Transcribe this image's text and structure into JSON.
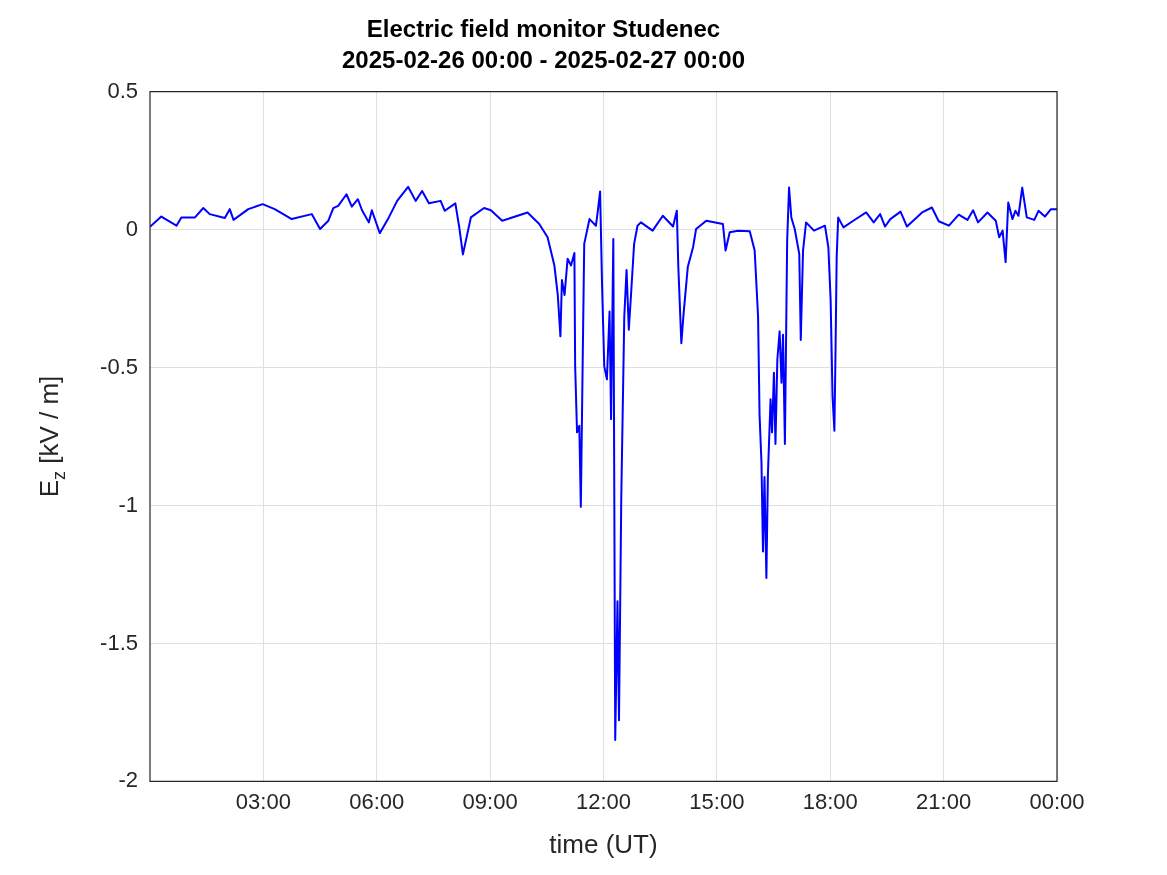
{
  "chart_data": {
    "type": "line",
    "title": "Electric field monitor Studenec",
    "subtitle": "2025-02-26 00:00 - 2025-02-27 00:00",
    "xlabel": "time (UT)",
    "ylabel": "E$_{z}$ [kV / m]",
    "xlim": [
      0,
      24
    ],
    "xticks": [
      {
        "value": 3,
        "label": "03:00"
      },
      {
        "value": 6,
        "label": "06:00"
      },
      {
        "value": 9,
        "label": "09:00"
      },
      {
        "value": 12,
        "label": "12:00"
      },
      {
        "value": 15,
        "label": "15:00"
      },
      {
        "value": 18,
        "label": "18:00"
      },
      {
        "value": 21,
        "label": "21:00"
      },
      {
        "value": 24,
        "label": "00:00"
      }
    ],
    "ylim": [
      -2,
      0.5
    ],
    "yticks": [
      -2,
      -1.5,
      -1,
      -0.5,
      0,
      0.5
    ],
    "grid": true,
    "marker": "none",
    "line_style": "solid",
    "series": [
      {
        "color": "#0000ff",
        "x": [
          0,
          0.3,
          0.7,
          0.83,
          1.19,
          1.41,
          1.58,
          1.98,
          2.11,
          2.21,
          2.6,
          2.98,
          3.3,
          3.75,
          4.28,
          4.5,
          4.72,
          4.85,
          4.98,
          5.2,
          5.34,
          5.5,
          5.61,
          5.79,
          5.87,
          6.08,
          6.32,
          6.54,
          6.83,
          7.03,
          7.2,
          7.38,
          7.69,
          7.8,
          8.08,
          8.19,
          8.28,
          8.49,
          8.84,
          9.02,
          9.32,
          9.99,
          10.3,
          10.52,
          10.7,
          10.79,
          10.86,
          10.9,
          10.97,
          11.05,
          11.14,
          11.23,
          11.25,
          11.3,
          11.36,
          11.4,
          11.45,
          11.49,
          11.63,
          11.8,
          11.85,
          11.91,
          11.96,
          12.02,
          12.09,
          12.16,
          12.2,
          12.26,
          12.31,
          12.37,
          12.41,
          12.47,
          12.55,
          12.61,
          12.67,
          12.73,
          12.81,
          12.9,
          12.99,
          13.3,
          13.57,
          13.84,
          13.94,
          13.98,
          14.06,
          14.12,
          14.23,
          14.37,
          14.45,
          14.72,
          15.16,
          15.23,
          15.34,
          15.56,
          15.87,
          16,
          16.09,
          16.13,
          16.18,
          16.22,
          16.26,
          16.31,
          16.35,
          16.42,
          16.46,
          16.51,
          16.55,
          16.6,
          16.66,
          16.71,
          16.75,
          16.8,
          16.86,
          16.91,
          16.97,
          17.06,
          17.18,
          17.22,
          17.28,
          17.36,
          17.57,
          17.86,
          17.95,
          18.01,
          18.06,
          18.11,
          18.14,
          18.17,
          18.21,
          18.35,
          18.61,
          18.95,
          19.15,
          19.32,
          19.45,
          19.59,
          19.86,
          20.03,
          20.43,
          20.69,
          20.87,
          21.14,
          21.4,
          21.63,
          21.78,
          21.91,
          22.16,
          22.38,
          22.47,
          22.56,
          22.64,
          22.71,
          22.82,
          22.9,
          22.98,
          23.08,
          23.2,
          23.4,
          23.51,
          23.68,
          23.84,
          24
        ],
        "values": [
          0.01,
          0.047,
          0.014,
          0.044,
          0.044,
          0.078,
          0.056,
          0.042,
          0.074,
          0.035,
          0.074,
          0.092,
          0.074,
          0.038,
          0.056,
          0.002,
          0.032,
          0.078,
          0.086,
          0.128,
          0.083,
          0.11,
          0.07,
          0.026,
          0.07,
          -0.013,
          0.044,
          0.104,
          0.155,
          0.104,
          0.14,
          0.095,
          0.104,
          0.068,
          0.095,
          0.002,
          -0.09,
          0.044,
          0.078,
          0.07,
          0.032,
          0.062,
          0.02,
          -0.028,
          -0.13,
          -0.237,
          -0.387,
          -0.183,
          -0.237,
          -0.106,
          -0.13,
          -0.085,
          -0.495,
          -0.735,
          -0.711,
          -1.005,
          -0.471,
          -0.052,
          0.038,
          0.014,
          0.068,
          0.138,
          -0.19,
          -0.495,
          -0.543,
          -0.297,
          -0.687,
          -0.034,
          -1.85,
          -1.347,
          -1.778,
          -0.975,
          -0.315,
          -0.147,
          -0.363,
          -0.232,
          -0.052,
          0.014,
          0.026,
          -0.004,
          0.05,
          0.011,
          0.068,
          -0.136,
          -0.412,
          -0.304,
          -0.136,
          -0.064,
          0.002,
          0.032,
          0.02,
          -0.076,
          -0.01,
          -0.004,
          -0.006,
          -0.076,
          -0.315,
          -0.675,
          -0.843,
          -1.167,
          -0.897,
          -1.263,
          -0.891,
          -0.615,
          -0.735,
          -0.519,
          -0.777,
          -0.471,
          -0.369,
          -0.555,
          -0.381,
          -0.777,
          -0.04,
          0.152,
          0.044,
          0.002,
          -0.088,
          -0.4,
          -0.076,
          0.026,
          -0.004,
          0.014,
          -0.064,
          -0.255,
          -0.603,
          -0.729,
          -0.435,
          -0.1,
          0.044,
          0.008,
          0.032,
          0.062,
          0.026,
          0.056,
          0.011,
          0.038,
          0.065,
          0.011,
          0.062,
          0.08,
          0.03,
          0.014,
          0.054,
          0.035,
          0.07,
          0.026,
          0.062,
          0.032,
          -0.028,
          -0.004,
          -0.118,
          0.098,
          0.038,
          0.068,
          0.05,
          0.152,
          0.044,
          0.035,
          0.068,
          0.047,
          0.074,
          0.074
        ]
      }
    ]
  }
}
